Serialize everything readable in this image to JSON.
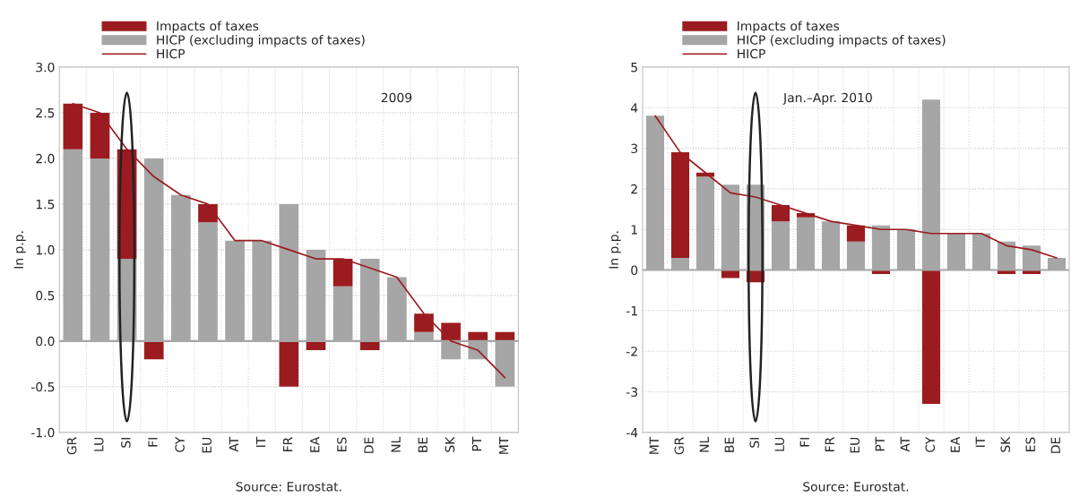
{
  "chart_data": [
    {
      "type": "bar",
      "stacked": true,
      "ylabel": "In p.p.",
      "annotations": [
        "2009",
        "Source: Eurostat."
      ],
      "legend": "top",
      "grid": true,
      "categories": [
        "GR",
        "LU",
        "SI",
        "FI",
        "CY",
        "EU",
        "AT",
        "IT",
        "FR",
        "EA",
        "ES",
        "DE",
        "NL",
        "BE",
        "SK",
        "PT",
        "MT"
      ],
      "ylim": [
        -1.0,
        3.0
      ],
      "yticks": [
        {
          "value": -1,
          "label": "-1.0"
        },
        {
          "value": -0.5,
          "label": "-0.5"
        },
        {
          "value": 0,
          "label": "0.0"
        },
        {
          "value": 0.5,
          "label": "0.5"
        },
        {
          "value": 1,
          "label": "1.0"
        },
        {
          "value": 1.5,
          "label": "1.5"
        },
        {
          "value": 2,
          "label": "2.0"
        },
        {
          "value": 2.5,
          "label": "2.5"
        },
        {
          "value": 3,
          "label": "3.0"
        }
      ],
      "series": [
        {
          "name": "HICP (excluding impacts of taxes)",
          "color": "#a6a6a6",
          "values": [
            2.1,
            2.0,
            0.9,
            2.0,
            1.6,
            1.3,
            1.1,
            1.1,
            1.5,
            1.0,
            0.6,
            0.9,
            0.7,
            0.1,
            -0.2,
            -0.2,
            -0.5
          ]
        },
        {
          "name": "Impacts of taxes",
          "color": "#9b1c20",
          "values": [
            0.5,
            0.5,
            1.2,
            -0.2,
            0,
            0.2,
            0,
            0,
            -0.5,
            -0.1,
            0.3,
            -0.1,
            0,
            0.2,
            0.2,
            0.1,
            0.1
          ]
        },
        {
          "name": "HICP",
          "type": "line",
          "color": "#9b1c20",
          "values": [
            2.6,
            2.5,
            2.1,
            1.8,
            1.6,
            1.5,
            1.1,
            1.1,
            1.0,
            0.9,
            0.9,
            0.8,
            0.7,
            0.3,
            0.0,
            -0.1,
            -0.4
          ]
        }
      ]
    },
    {
      "type": "bar",
      "stacked": true,
      "ylabel": "In p.p.",
      "annotations": [
        "Jan.–Apr. 2010",
        "Source: Eurostat."
      ],
      "legend": "top",
      "grid": true,
      "categories": [
        "MT",
        "GR",
        "NL",
        "BE",
        "SI",
        "LU",
        "FI",
        "FR",
        "EU",
        "PT",
        "AT",
        "CY",
        "EA",
        "IT",
        "SK",
        "ES",
        "DE"
      ],
      "ylim": [
        -4,
        5
      ],
      "yticks": [
        -4,
        -3,
        -2,
        -1,
        0,
        1,
        2,
        3,
        4,
        5
      ],
      "series": [
        {
          "name": "HICP (excluding impacts of taxes)",
          "color": "#a6a6a6",
          "values": [
            3.8,
            0.3,
            2.3,
            2.1,
            2.1,
            1.2,
            1.3,
            1.2,
            0.7,
            1.1,
            1.0,
            4.2,
            0.9,
            0.9,
            0.7,
            0.6,
            0.3
          ]
        },
        {
          "name": "Impacts of taxes",
          "color": "#9b1c20",
          "values": [
            0,
            2.6,
            0.1,
            -0.2,
            -0.3,
            0.4,
            0.1,
            0,
            0.4,
            -0.1,
            0,
            -3.3,
            0,
            0,
            -0.1,
            -0.1,
            0
          ]
        },
        {
          "name": "HICP",
          "type": "line",
          "color": "#9b1c20",
          "values": [
            3.8,
            2.9,
            2.4,
            1.9,
            1.8,
            1.6,
            1.4,
            1.2,
            1.1,
            1.0,
            1.0,
            0.9,
            0.9,
            0.9,
            0.6,
            0.5,
            0.3
          ]
        }
      ]
    }
  ]
}
